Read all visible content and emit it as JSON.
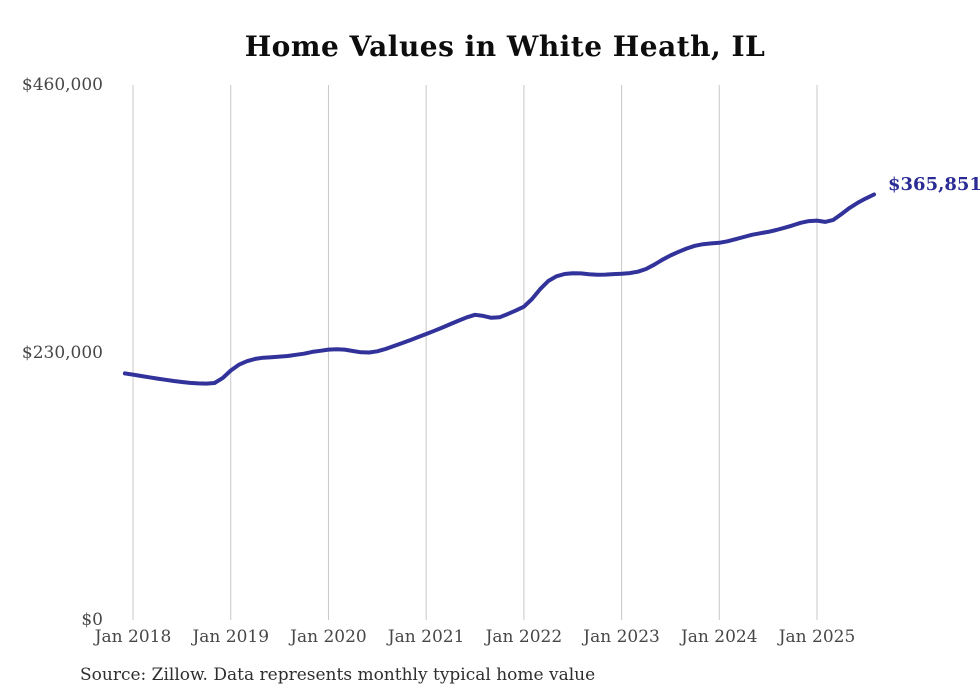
{
  "title": "Home Values in White Heath, IL",
  "source_note": "Source: Zillow. Data represents monthly typical home value",
  "end_label": "$365,851",
  "colors": {
    "line": "#32329b",
    "end_label": "#2b2b96",
    "grid": "#c8c8c8",
    "axis_text": "#474747",
    "title_text": "#0d0d0d",
    "source_text": "#2e2e2e",
    "background": "#ffffff"
  },
  "chart_data": {
    "type": "line",
    "title": "Home Values in White Heath, IL",
    "xlabel": "",
    "ylabel": "",
    "ylim": [
      0,
      460000
    ],
    "grid": "vertical-only",
    "legend": "none",
    "final_value": 365851,
    "end_label": "$365,851",
    "yticks": [
      {
        "label": "$460,000",
        "value": 460000
      },
      {
        "label": "$230,000",
        "value": 230000
      },
      {
        "label": "$0",
        "value": 0
      }
    ],
    "xticks": [
      "Jan 2018",
      "Jan 2019",
      "Jan 2020",
      "Jan 2021",
      "Jan 2022",
      "Jan 2023",
      "Jan 2024",
      "Jan 2025"
    ],
    "x": [
      "Dec 2017",
      "Jan 2018",
      "Feb 2018",
      "Mar 2018",
      "Apr 2018",
      "May 2018",
      "Jun 2018",
      "Jul 2018",
      "Aug 2018",
      "Sep 2018",
      "Oct 2018",
      "Nov 2018",
      "Dec 2018",
      "Jan 2019",
      "Feb 2019",
      "Mar 2019",
      "Apr 2019",
      "May 2019",
      "Jun 2019",
      "Jul 2019",
      "Aug 2019",
      "Sep 2019",
      "Oct 2019",
      "Nov 2019",
      "Dec 2019",
      "Jan 2020",
      "Feb 2020",
      "Mar 2020",
      "Apr 2020",
      "May 2020",
      "Jun 2020",
      "Jul 2020",
      "Aug 2020",
      "Sep 2020",
      "Oct 2020",
      "Nov 2020",
      "Dec 2020",
      "Jan 2021",
      "Feb 2021",
      "Mar 2021",
      "Apr 2021",
      "May 2021",
      "Jun 2021",
      "Jul 2021",
      "Aug 2021",
      "Sep 2021",
      "Oct 2021",
      "Nov 2021",
      "Dec 2021",
      "Jan 2022",
      "Feb 2022",
      "Mar 2022",
      "Apr 2022",
      "May 2022",
      "Jun 2022",
      "Jul 2022",
      "Aug 2022",
      "Sep 2022",
      "Oct 2022",
      "Nov 2022",
      "Dec 2022",
      "Jan 2023",
      "Feb 2023",
      "Mar 2023",
      "Apr 2023",
      "May 2023",
      "Jun 2023",
      "Jul 2023",
      "Aug 2023",
      "Sep 2023",
      "Oct 2023",
      "Nov 2023",
      "Dec 2023",
      "Jan 2024",
      "Feb 2024",
      "Mar 2024",
      "Apr 2024",
      "May 2024",
      "Jun 2024",
      "Jul 2024",
      "Aug 2024",
      "Sep 2024",
      "Oct 2024",
      "Nov 2024",
      "Dec 2024",
      "Jan 2025",
      "Feb 2025",
      "Mar 2025",
      "Apr 2025",
      "May 2025",
      "Jun 2025",
      "Jul 2025",
      "Aug 2025"
    ],
    "values": [
      212000,
      211000,
      209800,
      208700,
      207600,
      206500,
      205500,
      204600,
      203900,
      203400,
      203300,
      203800,
      208000,
      214500,
      219500,
      222500,
      224500,
      225500,
      226000,
      226500,
      227000,
      228000,
      229000,
      230500,
      231500,
      232500,
      232800,
      232500,
      231300,
      230200,
      230000,
      231000,
      233000,
      235500,
      238000,
      240500,
      243200,
      245900,
      248700,
      251500,
      254500,
      257400,
      260300,
      262400,
      261500,
      259800,
      260300,
      263000,
      266000,
      269400,
      276000,
      284500,
      291500,
      295500,
      297500,
      298200,
      298000,
      297300,
      296800,
      297000,
      297400,
      297700,
      298300,
      299500,
      301800,
      305500,
      309700,
      313400,
      316600,
      319400,
      321700,
      323100,
      323800,
      324300,
      325600,
      327400,
      329300,
      331200,
      332500,
      333700,
      335300,
      337200,
      339300,
      341500,
      343000,
      343400,
      342300,
      344000,
      349000,
      354300,
      358700,
      362500,
      365851
    ]
  }
}
